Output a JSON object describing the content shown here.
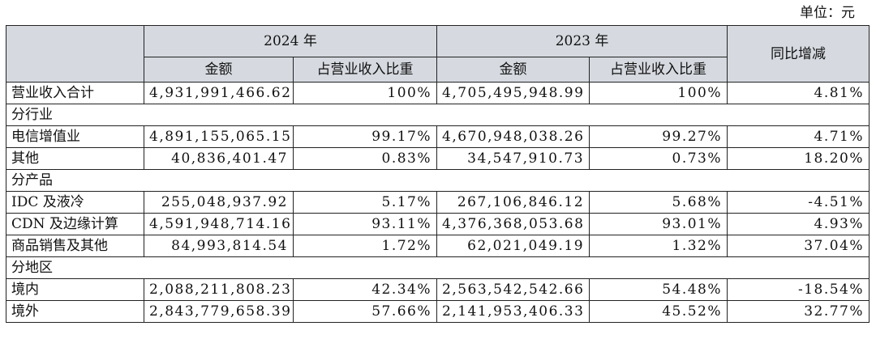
{
  "unit_label": "单位：元",
  "header": {
    "year_2024": "2024 年",
    "year_2023": "2023 年",
    "amount": "金额",
    "ratio": "占营业收入比重",
    "yoy": "同比增减"
  },
  "total": {
    "label": "营业收入合计",
    "amount_2024": "4,931,991,466.62",
    "ratio_2024": "100%",
    "amount_2023": "4,705,495,948.99",
    "ratio_2023": "100%",
    "yoy": "4.81%"
  },
  "groups": {
    "industry": {
      "title": "分行业",
      "rows": [
        {
          "label": "电信增值业",
          "amount_2024": "4,891,155,065.15",
          "ratio_2024": "99.17%",
          "amount_2023": "4,670,948,038.26",
          "ratio_2023": "99.27%",
          "yoy": "4.71%"
        },
        {
          "label": "其他",
          "amount_2024": "40,836,401.47",
          "ratio_2024": "0.83%",
          "amount_2023": "34,547,910.73",
          "ratio_2023": "0.73%",
          "yoy": "18.20%"
        }
      ]
    },
    "product": {
      "title": "分产品",
      "rows": [
        {
          "label": "IDC 及液冷",
          "amount_2024": "255,048,937.92",
          "ratio_2024": "5.17%",
          "amount_2023": "267,106,846.12",
          "ratio_2023": "5.68%",
          "yoy": "-4.51%"
        },
        {
          "label": "CDN 及边缘计算",
          "amount_2024": "4,591,948,714.16",
          "ratio_2024": "93.11%",
          "amount_2023": "4,376,368,053.68",
          "ratio_2023": "93.01%",
          "yoy": "4.93%"
        },
        {
          "label": "商品销售及其他",
          "amount_2024": "84,993,814.54",
          "ratio_2024": "1.72%",
          "amount_2023": "62,021,049.19",
          "ratio_2023": "1.32%",
          "yoy": "37.04%"
        }
      ]
    },
    "region": {
      "title": "分地区",
      "rows": [
        {
          "label": "境内",
          "amount_2024": "2,088,211,808.23",
          "ratio_2024": "42.34%",
          "amount_2023": "2,563,542,542.66",
          "ratio_2023": "54.48%",
          "yoy": "-18.54%"
        },
        {
          "label": "境外",
          "amount_2024": "2,843,779,658.39",
          "ratio_2024": "57.66%",
          "amount_2023": "2,141,953,406.33",
          "ratio_2023": "45.52%",
          "yoy": "32.77%"
        }
      ]
    }
  }
}
